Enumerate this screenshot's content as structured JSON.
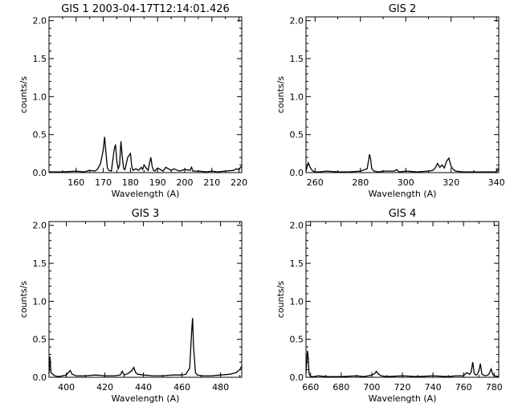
{
  "chart_data": [
    {
      "type": "line",
      "title": "GIS 1 2003-04-17T12:14:01.426",
      "xlabel": "Wavelength (A)",
      "ylabel": "counts/s",
      "xlim": [
        150,
        221
      ],
      "ylim": [
        0,
        2.05
      ],
      "xticks": [
        160,
        170,
        180,
        190,
        200,
        210,
        220
      ],
      "yticks": [
        "0.0",
        "0.5",
        "1.0",
        "1.5",
        "2.0"
      ],
      "series": [
        {
          "x": [
            150,
            155,
            160,
            163,
            165,
            167,
            168,
            169,
            170,
            170.5,
            171,
            171.5,
            172,
            173,
            174,
            174.5,
            175,
            175.5,
            176,
            176.5,
            177,
            177.5,
            178,
            179,
            180,
            180.5,
            181,
            182,
            183,
            184,
            184.5,
            185,
            186,
            186.5,
            187,
            187.5,
            188,
            188.5,
            189,
            190,
            192,
            193,
            195,
            196,
            198,
            200,
            202,
            202.5,
            203,
            205,
            208,
            210,
            212,
            215,
            218,
            219,
            220,
            221
          ],
          "y": [
            0.01,
            0.01,
            0.02,
            0.01,
            0.03,
            0.02,
            0.05,
            0.12,
            0.3,
            0.47,
            0.25,
            0.06,
            0.03,
            0.02,
            0.3,
            0.37,
            0.15,
            0.05,
            0.1,
            0.41,
            0.2,
            0.05,
            0.04,
            0.2,
            0.25,
            0.08,
            0.03,
            0.05,
            0.03,
            0.07,
            0.04,
            0.1,
            0.05,
            0.03,
            0.12,
            0.2,
            0.08,
            0.03,
            0.02,
            0.06,
            0.02,
            0.07,
            0.03,
            0.05,
            0.02,
            0.04,
            0.03,
            0.07,
            0.02,
            0.02,
            0.01,
            0.02,
            0.01,
            0.02,
            0.03,
            0.05,
            0.04,
            0.09
          ]
        }
      ]
    },
    {
      "type": "line",
      "title": "GIS 2",
      "xlabel": "Wavelength (A)",
      "ylabel": "counts/s",
      "xlim": [
        256,
        341
      ],
      "ylim": [
        0,
        2.05
      ],
      "xticks": [
        260,
        280,
        300,
        320,
        340
      ],
      "yticks": [
        "0.0",
        "0.5",
        "1.0",
        "1.5",
        "2.0"
      ],
      "series": [
        {
          "x": [
            256,
            257,
            258,
            259,
            260,
            262,
            265,
            270,
            275,
            280,
            283,
            284,
            284.5,
            285,
            286,
            288,
            290,
            295,
            296,
            297,
            300,
            305,
            310,
            312,
            313,
            314,
            315,
            316,
            317,
            318,
            319,
            320,
            321,
            322,
            325,
            330,
            335,
            340,
            341
          ],
          "y": [
            0.02,
            0.13,
            0.06,
            0.02,
            0.01,
            0.01,
            0.02,
            0.01,
            0.01,
            0.02,
            0.05,
            0.24,
            0.18,
            0.05,
            0.02,
            0.01,
            0.02,
            0.02,
            0.04,
            0.01,
            0.02,
            0.01,
            0.02,
            0.03,
            0.06,
            0.12,
            0.07,
            0.1,
            0.06,
            0.15,
            0.19,
            0.08,
            0.04,
            0.02,
            0.01,
            0.01,
            0.01,
            0.01,
            0.06
          ]
        }
      ]
    },
    {
      "type": "line",
      "title": "GIS 3",
      "xlabel": "Wavelength (A)",
      "ylabel": "counts/s",
      "xlim": [
        391,
        491
      ],
      "ylim": [
        0,
        2.05
      ],
      "xticks": [
        400,
        420,
        440,
        460,
        480
      ],
      "yticks": [
        "0.0",
        "0.5",
        "1.0",
        "1.5",
        "2.0"
      ],
      "series": [
        {
          "x": [
            391,
            391.5,
            392,
            394,
            396,
            398,
            400,
            401,
            402,
            403,
            405,
            410,
            415,
            420,
            425,
            428,
            429,
            430,
            432,
            434,
            435,
            436,
            437,
            440,
            445,
            450,
            455,
            460,
            462,
            464,
            465,
            465.5,
            466,
            467,
            468,
            470,
            475,
            480,
            485,
            488,
            490,
            491
          ],
          "y": [
            0.05,
            0.27,
            0.06,
            0.02,
            0.01,
            0.02,
            0.03,
            0.06,
            0.09,
            0.04,
            0.02,
            0.02,
            0.03,
            0.02,
            0.02,
            0.03,
            0.08,
            0.03,
            0.05,
            0.09,
            0.13,
            0.06,
            0.04,
            0.03,
            0.02,
            0.02,
            0.03,
            0.03,
            0.04,
            0.12,
            0.6,
            0.78,
            0.4,
            0.06,
            0.03,
            0.02,
            0.02,
            0.03,
            0.04,
            0.06,
            0.1,
            0.15
          ]
        }
      ]
    },
    {
      "type": "line",
      "title": "GIS 4",
      "xlabel": "Wavelength (A)",
      "ylabel": "counts/s",
      "xlim": [
        657,
        783
      ],
      "ylim": [
        0,
        2.05
      ],
      "xticks": [
        660,
        680,
        700,
        720,
        740,
        760,
        780
      ],
      "yticks": [
        "0.0",
        "0.5",
        "1.0",
        "1.5",
        "2.0"
      ],
      "series": [
        {
          "x": [
            657,
            658,
            658.5,
            659,
            660,
            662,
            665,
            670,
            680,
            690,
            695,
            700,
            702,
            703,
            704,
            706,
            710,
            720,
            730,
            740,
            750,
            755,
            760,
            762,
            764,
            765,
            766,
            767,
            768,
            769,
            770,
            771,
            772,
            774,
            776,
            777,
            778,
            779,
            780,
            783
          ],
          "y": [
            0.05,
            0.35,
            0.25,
            0.05,
            0.01,
            0.01,
            0.02,
            0.01,
            0.01,
            0.02,
            0.01,
            0.03,
            0.05,
            0.08,
            0.05,
            0.02,
            0.01,
            0.02,
            0.01,
            0.02,
            0.01,
            0.02,
            0.02,
            0.06,
            0.04,
            0.07,
            0.2,
            0.05,
            0.03,
            0.04,
            0.08,
            0.18,
            0.04,
            0.02,
            0.03,
            0.06,
            0.11,
            0.04,
            0.02,
            0.01
          ]
        }
      ]
    }
  ]
}
